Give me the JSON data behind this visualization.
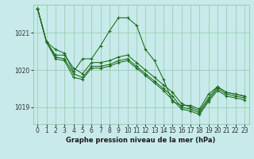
{
  "xlabel": "Graphe pression niveau de la mer (hPa)",
  "bg_color": "#c8eaea",
  "grid_color": "#90c9a8",
  "line_color": "#1a6b1a",
  "ylim": [
    1018.55,
    1021.75
  ],
  "xlim": [
    -0.5,
    23.5
  ],
  "yticks": [
    1019,
    1020,
    1021
  ],
  "xticks": [
    0,
    1,
    2,
    3,
    4,
    5,
    6,
    7,
    8,
    9,
    10,
    11,
    12,
    13,
    14,
    15,
    16,
    17,
    18,
    19,
    20,
    21,
    22,
    23
  ],
  "series": [
    [
      1021.65,
      1020.75,
      1020.55,
      1020.45,
      1019.95,
      1020.3,
      1020.3,
      1020.65,
      1021.05,
      1021.4,
      1021.4,
      1021.2,
      1020.55,
      1020.25,
      1019.75,
      1019.15,
      1019.05,
      1019.05,
      1018.95,
      1019.35,
      1019.55,
      1019.4,
      1019.35,
      1019.3
    ],
    [
      1021.65,
      1020.75,
      1020.4,
      1020.4,
      1020.05,
      1019.9,
      1020.2,
      1020.2,
      1020.25,
      1020.35,
      1020.4,
      1020.2,
      1020.0,
      1019.8,
      1019.6,
      1019.4,
      1019.1,
      1019.0,
      1018.9,
      1019.25,
      1019.55,
      1019.4,
      1019.35,
      1019.3
    ],
    [
      1021.65,
      1020.75,
      1020.35,
      1020.3,
      1019.9,
      1019.8,
      1020.1,
      1020.1,
      1020.15,
      1020.25,
      1020.3,
      1020.1,
      1019.9,
      1019.7,
      1019.5,
      1019.3,
      1019.0,
      1018.95,
      1018.85,
      1019.2,
      1019.5,
      1019.35,
      1019.3,
      1019.25
    ],
    [
      1021.65,
      1020.75,
      1020.3,
      1020.25,
      1019.8,
      1019.75,
      1020.05,
      1020.05,
      1020.1,
      1020.2,
      1020.25,
      1020.05,
      1019.85,
      1019.65,
      1019.45,
      1019.2,
      1018.95,
      1018.9,
      1018.8,
      1019.15,
      1019.45,
      1019.3,
      1019.25,
      1019.2
    ]
  ]
}
